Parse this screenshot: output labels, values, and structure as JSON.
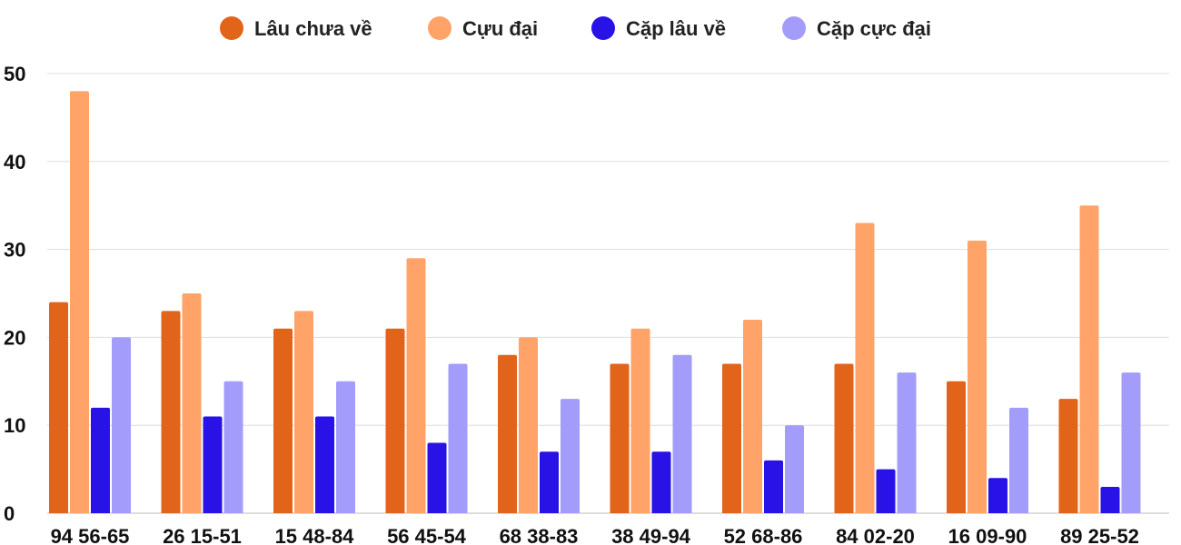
{
  "chart_data": {
    "type": "bar",
    "title": "",
    "xlabel": "",
    "ylabel": "",
    "categories": [
      "94 56-65",
      "26 15-51",
      "15 48-84",
      "56 45-54",
      "68 38-83",
      "38 49-94",
      "52 68-86",
      "84 02-20",
      "16 09-90",
      "89 25-52"
    ],
    "ylim": [
      0,
      50
    ],
    "yticks": [
      "0",
      "10",
      "20",
      "30",
      "40",
      "50"
    ],
    "grid": true,
    "legend_position": "top-center",
    "series": [
      {
        "name": "Lâu chưa về",
        "color": "#e2631a",
        "values": [
          24,
          23,
          21,
          21,
          18,
          17,
          17,
          17,
          15,
          13
        ]
      },
      {
        "name": "Cựu đại",
        "color": "#ffa368",
        "values": [
          48,
          25,
          23,
          29,
          20,
          21,
          22,
          33,
          31,
          35
        ]
      },
      {
        "name": "Cặp lâu về",
        "color": "#2812e6",
        "values": [
          12,
          11,
          11,
          8,
          7,
          7,
          6,
          5,
          4,
          3
        ]
      },
      {
        "name": "Cặp cực đại",
        "color": "#a39cfa",
        "values": [
          20,
          15,
          15,
          17,
          13,
          18,
          10,
          16,
          12,
          16
        ]
      }
    ]
  }
}
